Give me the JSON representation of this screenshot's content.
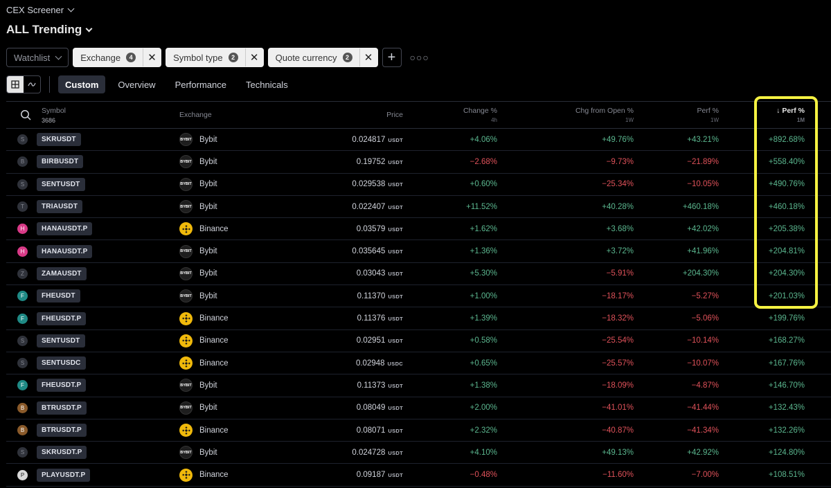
{
  "app": {
    "title": "CEX Screener"
  },
  "page": {
    "title": "ALL Trending"
  },
  "filters": {
    "watchlist": "Watchlist",
    "exchange": {
      "label": "Exchange",
      "count": "4"
    },
    "symbol_type": {
      "label": "Symbol type",
      "count": "2"
    },
    "quote_currency": {
      "label": "Quote currency",
      "count": "2"
    }
  },
  "tabs": [
    "Custom",
    "Overview",
    "Performance",
    "Technicals"
  ],
  "columns": {
    "symbol": "Symbol",
    "symbol_count": "3686",
    "exchange": "Exchange",
    "price": "Price",
    "change": {
      "label": "Change %",
      "sub": "4h"
    },
    "chg_open": {
      "label": "Chg from Open %",
      "sub": "1W"
    },
    "perf_1w": {
      "label": "Perf %",
      "sub": "1W"
    },
    "perf_1m": {
      "label": "Perf %",
      "sub": "1M"
    }
  },
  "colors": {
    "positive": "#5bb78f",
    "negative": "#e0525a",
    "highlight": "#f5f242",
    "binance": "#f0b90b"
  },
  "rows": [
    {
      "avatar": "S",
      "avatar_style": "plain",
      "symbol": "SKRUSDT",
      "exchange": "Bybit",
      "exchange_icon": "BYBIT",
      "price": "0.024817",
      "unit": "USDT",
      "change": "+4.06%",
      "chg_open": "+49.76%",
      "perf_1w": "+43.21%",
      "perf_1m": "+892.68%"
    },
    {
      "avatar": "B",
      "avatar_style": "plain",
      "symbol": "BIRBUSDT",
      "exchange": "Bybit",
      "exchange_icon": "BYBIT",
      "price": "0.19752",
      "unit": "USDT",
      "change": "−2.68%",
      "chg_open": "−9.73%",
      "perf_1w": "−21.89%",
      "perf_1m": "+558.40%"
    },
    {
      "avatar": "S",
      "avatar_style": "plain",
      "symbol": "SENTUSDT",
      "exchange": "Bybit",
      "exchange_icon": "BYBIT",
      "price": "0.029538",
      "unit": "USDT",
      "change": "+0.60%",
      "chg_open": "−25.34%",
      "perf_1w": "−10.05%",
      "perf_1m": "+490.76%"
    },
    {
      "avatar": "T",
      "avatar_style": "plain",
      "symbol": "TRIAUSDT",
      "exchange": "Bybit",
      "exchange_icon": "BYBIT",
      "price": "0.022407",
      "unit": "USDT",
      "change": "+11.52%",
      "chg_open": "+40.28%",
      "perf_1w": "+460.18%",
      "perf_1m": "+460.18%"
    },
    {
      "avatar": "H",
      "avatar_style": "pink",
      "symbol": "HANAUSDT.P",
      "exchange": "Binance",
      "exchange_icon": "BINANCE",
      "price": "0.03579",
      "unit": "USDT",
      "change": "+1.62%",
      "chg_open": "+3.68%",
      "perf_1w": "+42.02%",
      "perf_1m": "+205.38%"
    },
    {
      "avatar": "H",
      "avatar_style": "pink",
      "symbol": "HANAUSDT.P",
      "exchange": "Bybit",
      "exchange_icon": "BYBIT",
      "price": "0.035645",
      "unit": "USDT",
      "change": "+1.36%",
      "chg_open": "+3.72%",
      "perf_1w": "+41.96%",
      "perf_1m": "+204.81%"
    },
    {
      "avatar": "Z",
      "avatar_style": "plain",
      "symbol": "ZAMAUSDT",
      "exchange": "Bybit",
      "exchange_icon": "BYBIT",
      "price": "0.03043",
      "unit": "USDT",
      "change": "+5.30%",
      "chg_open": "−5.91%",
      "perf_1w": "+204.30%",
      "perf_1m": "+204.30%"
    },
    {
      "avatar": "F",
      "avatar_style": "teal",
      "symbol": "FHEUSDT",
      "exchange": "Bybit",
      "exchange_icon": "BYBIT",
      "price": "0.11370",
      "unit": "USDT",
      "change": "+1.00%",
      "chg_open": "−18.17%",
      "perf_1w": "−5.27%",
      "perf_1m": "+201.03%"
    },
    {
      "avatar": "F",
      "avatar_style": "teal",
      "symbol": "FHEUSDT.P",
      "exchange": "Binance",
      "exchange_icon": "BINANCE",
      "price": "0.11376",
      "unit": "USDT",
      "change": "+1.39%",
      "chg_open": "−18.32%",
      "perf_1w": "−5.06%",
      "perf_1m": "+199.76%"
    },
    {
      "avatar": "S",
      "avatar_style": "plain",
      "symbol": "SENTUSDT",
      "exchange": "Binance",
      "exchange_icon": "BINANCE",
      "price": "0.02951",
      "unit": "USDT",
      "change": "+0.58%",
      "chg_open": "−25.54%",
      "perf_1w": "−10.14%",
      "perf_1m": "+168.27%"
    },
    {
      "avatar": "S",
      "avatar_style": "plain",
      "symbol": "SENTUSDC",
      "exchange": "Binance",
      "exchange_icon": "BINANCE",
      "price": "0.02948",
      "unit": "USDC",
      "change": "+0.65%",
      "chg_open": "−25.57%",
      "perf_1w": "−10.07%",
      "perf_1m": "+167.76%"
    },
    {
      "avatar": "F",
      "avatar_style": "teal",
      "symbol": "FHEUSDT.P",
      "exchange": "Bybit",
      "exchange_icon": "BYBIT",
      "price": "0.11373",
      "unit": "USDT",
      "change": "+1.38%",
      "chg_open": "−18.09%",
      "perf_1w": "−4.87%",
      "perf_1m": "+146.70%"
    },
    {
      "avatar": "B",
      "avatar_style": "brown",
      "symbol": "BTRUSDT.P",
      "exchange": "Bybit",
      "exchange_icon": "BYBIT",
      "price": "0.08049",
      "unit": "USDT",
      "change": "+2.00%",
      "chg_open": "−41.01%",
      "perf_1w": "−41.44%",
      "perf_1m": "+132.43%"
    },
    {
      "avatar": "B",
      "avatar_style": "brown",
      "symbol": "BTRUSDT.P",
      "exchange": "Binance",
      "exchange_icon": "BINANCE",
      "price": "0.08071",
      "unit": "USDT",
      "change": "+2.32%",
      "chg_open": "−40.87%",
      "perf_1w": "−41.34%",
      "perf_1m": "+132.26%"
    },
    {
      "avatar": "S",
      "avatar_style": "plain",
      "symbol": "SKRUSDT.P",
      "exchange": "Bybit",
      "exchange_icon": "BYBIT",
      "price": "0.024728",
      "unit": "USDT",
      "change": "+4.10%",
      "chg_open": "+49.13%",
      "perf_1w": "+42.92%",
      "perf_1m": "+124.80%"
    },
    {
      "avatar": "P",
      "avatar_style": "light",
      "symbol": "PLAYUSDT.P",
      "exchange": "Binance",
      "exchange_icon": "BINANCE",
      "price": "0.09187",
      "unit": "USDT",
      "change": "−0.48%",
      "chg_open": "−11.60%",
      "perf_1w": "−7.00%",
      "perf_1m": "+108.51%"
    }
  ]
}
